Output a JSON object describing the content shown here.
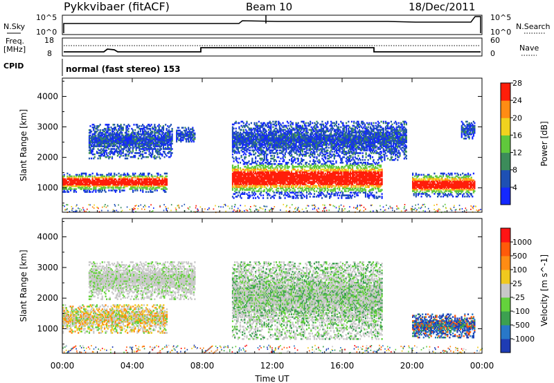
{
  "header": {
    "title": "Pykkvibaer (fitACF)",
    "beam": "Beam 10",
    "date": "18/Dec/2011"
  },
  "meta_panels": {
    "nsky_label": "N.Sky",
    "nsky_ticks": [
      "10^5",
      "10^0"
    ],
    "nsearch_label": "N.Search",
    "nsearch_ticks": [
      "10^5",
      "10^0"
    ],
    "freq_label_1": "Freq.",
    "freq_label_2": "[MHz]",
    "freq_ticks": [
      "18",
      "8"
    ],
    "nave_label": "Nave",
    "nave_ticks": [
      "60",
      "0"
    ],
    "cpid_label": "CPID",
    "cpid_text": "normal (fast stereo) 153"
  },
  "chart_data": [
    {
      "type": "heatmap",
      "name": "power-panel",
      "ylabel": "Slant Range [km]",
      "xlabel": "Time UT",
      "x_ticks": [
        "00:00",
        "04:00",
        "08:00",
        "12:00",
        "16:00",
        "20:00",
        "00:00"
      ],
      "x_hours": [
        0,
        4,
        8,
        12,
        16,
        20,
        24
      ],
      "y_ticks": [
        1000,
        2000,
        3000,
        4000
      ],
      "ylim": [
        200,
        4600
      ],
      "colorbar_label": "Power [dB]",
      "colorbar_ticks": [
        4,
        8,
        12,
        16,
        20,
        24,
        28
      ],
      "colorbar_colors": [
        "#1428ff",
        "#1e50b4",
        "#3c8c5a",
        "#60c83c",
        "#f0d21e",
        "#ff8c14",
        "#ff1e0a"
      ],
      "echo_regions": [
        {
          "t0": 0.0,
          "t1": 6.0,
          "r0": 850,
          "r1": 1500,
          "peak": "red"
        },
        {
          "t0": 1.5,
          "t1": 6.3,
          "r0": 1950,
          "r1": 3100,
          "peak": "blue"
        },
        {
          "t0": 6.5,
          "t1": 7.6,
          "r0": 2500,
          "r1": 3000,
          "peak": "blue"
        },
        {
          "t0": 9.7,
          "t1": 18.3,
          "r0": 650,
          "r1": 1900,
          "peak": "red"
        },
        {
          "t0": 9.7,
          "t1": 19.7,
          "r0": 1900,
          "r1": 3200,
          "peak": "blue"
        },
        {
          "t0": 20.0,
          "t1": 23.6,
          "r0": 700,
          "r1": 1500,
          "peak": "red"
        },
        {
          "t0": 22.8,
          "t1": 23.6,
          "r0": 2600,
          "r1": 3200,
          "peak": "blue"
        }
      ]
    },
    {
      "type": "heatmap",
      "name": "velocity-panel",
      "ylabel": "Slant Range [km]",
      "xlabel": "Time UT",
      "x_ticks": [
        "00:00",
        "04:00",
        "08:00",
        "12:00",
        "16:00",
        "20:00",
        "00:00"
      ],
      "x_hours": [
        0,
        4,
        8,
        12,
        16,
        20,
        24
      ],
      "y_ticks": [
        1000,
        2000,
        3000,
        4000
      ],
      "ylim": [
        200,
        4600
      ],
      "colorbar_label": "Velocity [m s^-1]",
      "colorbar_ticks": [
        "1000",
        "500",
        "100",
        "25",
        "-25",
        "-100",
        "-500",
        "-1000"
      ],
      "colorbar_colors": [
        "#1e3cb4",
        "#2878c8",
        "#3ca050",
        "#64d23c",
        "#c8c8c8",
        "#f0c81e",
        "#ff8c14",
        "#ff5a0a",
        "#ff1414"
      ],
      "echo_regions": [
        {
          "t0": 0.0,
          "t1": 6.0,
          "r0": 850,
          "r1": 1800,
          "peak": "orange"
        },
        {
          "t0": 1.5,
          "t1": 7.6,
          "r0": 1950,
          "r1": 3200,
          "peak": "grey"
        },
        {
          "t0": 9.7,
          "t1": 18.3,
          "r0": 650,
          "r1": 3200,
          "peak": "green"
        },
        {
          "t0": 20.0,
          "t1": 23.6,
          "r0": 700,
          "r1": 1500,
          "peak": "blue"
        }
      ]
    }
  ],
  "colors": {
    "axis": "#000000",
    "background": "#ffffff"
  }
}
